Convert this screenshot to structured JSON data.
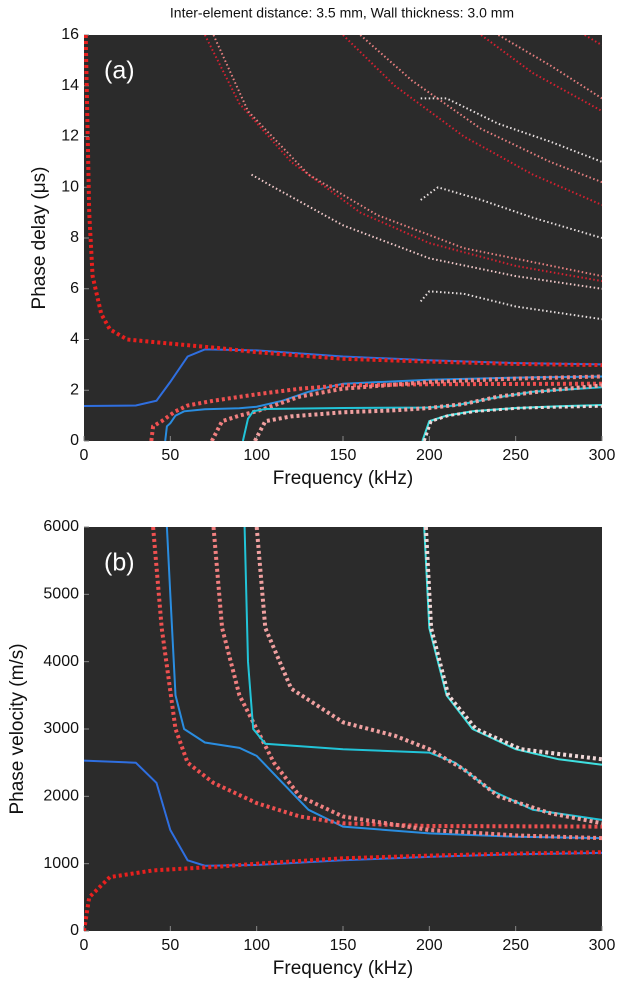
{
  "chart_data": [
    {
      "type": "line",
      "title": "Inter-element distance: 3.5 mm, Wall thickness: 3.0 mm",
      "annotation": "(a)",
      "xlabel": "Frequency (kHz)",
      "ylabel": "Phase delay (μs)",
      "background": "#2b2b2b",
      "grid": false,
      "xlim": [
        0,
        300
      ],
      "ylim": [
        0,
        16
      ],
      "xticks": [
        0,
        50,
        100,
        150,
        200,
        250,
        300
      ],
      "yticks": [
        0,
        2,
        4,
        6,
        8,
        10,
        12,
        14,
        16
      ],
      "series": [
        {
          "color": "#2f6fe0",
          "style": "solid",
          "linewidth": 2,
          "x": [
            0,
            30,
            42,
            50,
            60,
            70,
            100,
            150,
            200,
            250,
            300
          ],
          "values": [
            1.38,
            1.4,
            1.59,
            2.33,
            3.33,
            3.61,
            3.57,
            3.33,
            3.18,
            3.07,
            3.02
          ]
        },
        {
          "color": "#e8201e",
          "style": "dotted",
          "linewidth": 4,
          "x": [
            1,
            3,
            5,
            10,
            15,
            25,
            40,
            80,
            100,
            150,
            200,
            250,
            300
          ],
          "values": [
            16,
            9,
            6.5,
            5,
            4.4,
            4,
            3.9,
            3.65,
            3.5,
            3.24,
            3.13,
            3.04,
            2.99
          ]
        },
        {
          "color": "#2a8de0",
          "style": "solid",
          "linewidth": 2,
          "x": [
            47,
            48,
            50,
            53,
            58,
            70,
            90,
            100,
            115,
            130,
            150,
            200,
            250,
            300
          ],
          "values": [
            0,
            0.58,
            0.7,
            1,
            1.17,
            1.25,
            1.29,
            1.35,
            1.59,
            1.94,
            2.26,
            2.41,
            2.5,
            2.54
          ]
        },
        {
          "color": "#ee5050",
          "style": "dotted",
          "linewidth": 4,
          "x": [
            39,
            40,
            45,
            53,
            60,
            75,
            100,
            125,
            150,
            200,
            300
          ],
          "values": [
            0,
            0.58,
            0.78,
            1.17,
            1.4,
            1.59,
            1.84,
            2.06,
            2.19,
            2.24,
            2.26
          ]
        },
        {
          "color": "#f08080",
          "style": "dotted",
          "linewidth": 4,
          "x": [
            74,
            80,
            90,
            100,
            110,
            125,
            150,
            200,
            250,
            300
          ],
          "values": [
            0,
            0.78,
            1,
            1.17,
            1.4,
            1.75,
            2.06,
            2.33,
            2.46,
            2.54
          ]
        },
        {
          "color": "#22c4d8",
          "style": "solid",
          "linewidth": 2,
          "x": [
            92,
            95,
            98,
            105,
            150,
            200,
            215,
            235,
            260,
            300
          ],
          "values": [
            0,
            0.88,
            1.17,
            1.26,
            1.3,
            1.32,
            1.4,
            1.67,
            1.94,
            2.12
          ]
        },
        {
          "color": "#f0a0a0",
          "style": "dotted",
          "linewidth": 4,
          "x": [
            99,
            105,
            120,
            150,
            180,
            200,
            220,
            240,
            270,
            300
          ],
          "values": [
            0,
            0.78,
            0.97,
            1.13,
            1.21,
            1.3,
            1.46,
            1.75,
            2,
            2.19
          ]
        },
        {
          "color": "#40e0e0",
          "style": "solid",
          "linewidth": 2,
          "x": [
            196,
            200,
            210,
            225,
            250,
            275,
            300
          ],
          "values": [
            0,
            0.78,
            1,
            1.17,
            1.3,
            1.37,
            1.42
          ]
        },
        {
          "color": "#f0d8d8",
          "style": "dotted",
          "linewidth": 3,
          "x": [
            197,
            201,
            211,
            227,
            253,
            300
          ],
          "values": [
            0,
            0.78,
            1,
            1.17,
            1.3,
            1.37
          ]
        },
        {
          "color": "#e8e0e0",
          "style": "dotted",
          "linewidth": 2,
          "x": [
            195,
            200,
            220,
            250,
            300
          ],
          "values": [
            5.5,
            5.9,
            5.8,
            5.3,
            4.8
          ]
        },
        {
          "color": "#f0c8c8",
          "style": "dotted",
          "linewidth": 2,
          "x": [
            97,
            110,
            150,
            200,
            250,
            300
          ],
          "values": [
            10.5,
            10,
            8.5,
            7.2,
            6.5,
            6
          ]
        },
        {
          "color": "#d82030",
          "style": "dotted",
          "linewidth": 2,
          "x": [
            70,
            90,
            120,
            160,
            200,
            250,
            300
          ],
          "values": [
            16,
            13.3,
            11,
            9,
            7.8,
            6.9,
            6.3
          ]
        },
        {
          "color": "#e88080",
          "style": "dotted",
          "linewidth": 2,
          "x": [
            75,
            95,
            130,
            170,
            220,
            300
          ],
          "values": [
            16,
            13,
            10.5,
            8.9,
            7.6,
            6.5
          ]
        },
        {
          "color": "#e8e0e0",
          "style": "dotted",
          "linewidth": 2,
          "x": [
            195,
            205,
            230,
            260,
            300
          ],
          "values": [
            9.5,
            10,
            9.5,
            8.8,
            8
          ]
        },
        {
          "color": "#e8e0e0",
          "style": "dotted",
          "linewidth": 2,
          "x": [
            195,
            210,
            240,
            270,
            300
          ],
          "values": [
            13.5,
            13.5,
            12.5,
            11.8,
            11
          ]
        },
        {
          "color": "#d82030",
          "style": "dotted",
          "linewidth": 2,
          "x": [
            150,
            180,
            220,
            260,
            300
          ],
          "values": [
            16,
            14,
            12,
            10.5,
            9.3
          ]
        },
        {
          "color": "#e88080",
          "style": "dotted",
          "linewidth": 2,
          "x": [
            160,
            190,
            230,
            270,
            300
          ],
          "values": [
            16,
            14.2,
            12.3,
            11,
            10.2
          ]
        },
        {
          "color": "#d82030",
          "style": "dotted",
          "linewidth": 2,
          "x": [
            230,
            260,
            300
          ],
          "values": [
            16,
            14.5,
            13
          ]
        },
        {
          "color": "#e88080",
          "style": "dotted",
          "linewidth": 2,
          "x": [
            240,
            270,
            300
          ],
          "values": [
            16,
            14.8,
            13.5
          ]
        },
        {
          "color": "#d82030",
          "style": "dotted",
          "linewidth": 2,
          "x": [
            290,
            300
          ],
          "values": [
            16,
            15.6
          ]
        }
      ]
    },
    {
      "type": "line",
      "annotation": "(b)",
      "xlabel": "Frequency (kHz)",
      "ylabel": "Phase velocity (m/s)",
      "background": "#2b2b2b",
      "grid": false,
      "xlim": [
        0,
        300
      ],
      "ylim": [
        0,
        6000
      ],
      "xticks": [
        0,
        50,
        100,
        150,
        200,
        250,
        300
      ],
      "yticks": [
        0,
        1000,
        2000,
        3000,
        4000,
        5000,
        6000
      ],
      "series": [
        {
          "color": "#2f6fe0",
          "style": "solid",
          "linewidth": 2,
          "x": [
            0,
            30,
            42,
            50,
            60,
            70,
            100,
            150,
            200,
            250,
            300
          ],
          "values": [
            2530,
            2500,
            2200,
            1500,
            1050,
            970,
            980,
            1050,
            1100,
            1140,
            1160
          ]
        },
        {
          "color": "#e8201e",
          "style": "dotted",
          "linewidth": 4,
          "x": [
            0,
            3,
            15,
            40,
            80,
            100,
            150,
            200,
            250,
            300
          ],
          "values": [
            0,
            500,
            800,
            900,
            960,
            1000,
            1080,
            1120,
            1150,
            1170
          ]
        },
        {
          "color": "#2a8de0",
          "style": "solid",
          "linewidth": 2,
          "x": [
            48,
            50,
            53,
            58,
            70,
            90,
            100,
            115,
            130,
            150,
            200,
            250,
            300
          ],
          "values": [
            6000,
            5000,
            3500,
            3000,
            2800,
            2720,
            2600,
            2200,
            1800,
            1550,
            1450,
            1400,
            1380
          ]
        },
        {
          "color": "#ee5050",
          "style": "dotted",
          "linewidth": 4,
          "x": [
            40,
            45,
            53,
            60,
            75,
            100,
            125,
            150,
            200,
            300
          ],
          "values": [
            6000,
            4500,
            3000,
            2500,
            2200,
            1900,
            1700,
            1600,
            1560,
            1550
          ]
        },
        {
          "color": "#f08080",
          "style": "dotted",
          "linewidth": 4,
          "x": [
            75,
            80,
            90,
            100,
            110,
            125,
            150,
            200,
            250,
            300
          ],
          "values": [
            6000,
            4500,
            3500,
            3000,
            2500,
            2000,
            1700,
            1500,
            1420,
            1380
          ]
        },
        {
          "color": "#22c4d8",
          "style": "solid",
          "linewidth": 2,
          "x": [
            93,
            95,
            98,
            105,
            150,
            200,
            215,
            235,
            260,
            300
          ],
          "values": [
            6000,
            4000,
            3000,
            2780,
            2700,
            2650,
            2500,
            2100,
            1800,
            1650
          ]
        },
        {
          "color": "#f0a0a0",
          "style": "dotted",
          "linewidth": 4,
          "x": [
            100,
            105,
            120,
            150,
            180,
            200,
            220,
            240,
            270,
            300
          ],
          "values": [
            6000,
            4500,
            3600,
            3100,
            2900,
            2700,
            2400,
            2000,
            1750,
            1600
          ]
        },
        {
          "color": "#40e0e0",
          "style": "solid",
          "linewidth": 2,
          "x": [
            197,
            200,
            210,
            225,
            250,
            275,
            300
          ],
          "values": [
            6000,
            4500,
            3500,
            3000,
            2700,
            2550,
            2470
          ]
        },
        {
          "color": "#f0d8d8",
          "style": "dotted",
          "linewidth": 4,
          "x": [
            198,
            201,
            211,
            227,
            253,
            300
          ],
          "values": [
            6000,
            4500,
            3500,
            3000,
            2700,
            2550
          ]
        }
      ]
    }
  ]
}
